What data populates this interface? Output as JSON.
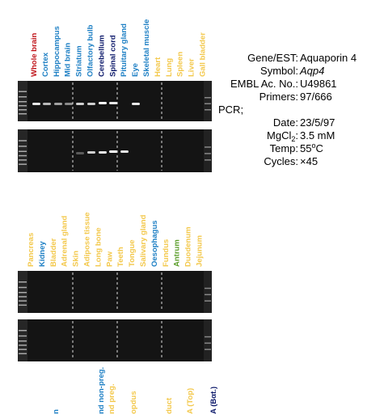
{
  "panel_1": {
    "lanes": [
      {
        "label": "Whole brain",
        "color": "#c0151b"
      },
      {
        "label": "Cortex",
        "color": "#1d7fc4"
      },
      {
        "label": "Hippocampus",
        "color": "#1d7fc4"
      },
      {
        "label": "Mid brain",
        "color": "#1d7fc4"
      },
      {
        "label": "Striatum",
        "color": "#1d7fc4"
      },
      {
        "label": "Olfactory bulb",
        "color": "#1d7fc4"
      },
      {
        "label": "Cerebellum",
        "color": "#0d1a6b"
      },
      {
        "label": "Spinal cord",
        "color": "#0d1a6b"
      },
      {
        "label": "Pituitary gland",
        "color": "#1d7fc4"
      },
      {
        "label": "Eye",
        "color": "#1d7fc4"
      },
      {
        "label": "Skeletal muscle",
        "color": "#1d7fc4"
      },
      {
        "label": "Heart",
        "color": "#f3c84b"
      },
      {
        "label": "Lung",
        "color": "#f3c84b"
      },
      {
        "label": "Spleen",
        "color": "#f3c84b"
      },
      {
        "label": "Liver",
        "color": "#f3c84b"
      },
      {
        "label": "Gall bladder",
        "color": "#f3c84b"
      }
    ]
  },
  "panel_2": {
    "lanes": [
      {
        "label": "Pancreas",
        "color": "#f3c84b"
      },
      {
        "label": "Kidney",
        "color": "#1d7fc4"
      },
      {
        "label": "Bladder",
        "color": "#f3c84b"
      },
      {
        "label": "Adrenal gland",
        "color": "#f3c84b"
      },
      {
        "label": "Skin",
        "color": "#f3c84b"
      },
      {
        "label": "Adipose tissue",
        "color": "#f3c84b"
      },
      {
        "label": "Long bone",
        "color": "#f3c84b"
      },
      {
        "label": "Paw",
        "color": "#f3c84b"
      },
      {
        "label": "Teeth",
        "color": "#f3c84b"
      },
      {
        "label": "Tongue",
        "color": "#f3c84b"
      },
      {
        "label": "Salivary gland",
        "color": "#f3c84b"
      },
      {
        "label": "Oesophagus",
        "color": "#1d7fc4"
      },
      {
        "label": "Fundus",
        "color": "#f3c84b"
      },
      {
        "label": "Antrum",
        "color": "#5b9e2a"
      },
      {
        "label": "Duodenum",
        "color": "#f3c84b"
      },
      {
        "label": "Jejunum",
        "color": "#f3c84b"
      }
    ]
  },
  "panel_3": {
    "lanes": [
      {
        "label": "n",
        "color": "#1d7fc4"
      },
      {
        "label": "nd non-preg.",
        "color": "#1d7fc4"
      },
      {
        "label": "nd preg.",
        "color": "#f3c84b"
      },
      {
        "label": "opdus",
        "color": "#f3c84b"
      },
      {
        "label": "duct",
        "color": "#f3c84b"
      },
      {
        "label": "A (Top)",
        "color": "#f3c84b"
      },
      {
        "label": "A (Bαt.)",
        "color": "#0d1a6b"
      }
    ]
  },
  "info": {
    "gene": {
      "label": "Gene/EST:",
      "value": "Aquaporin 4"
    },
    "symbol": {
      "label": "Symbol:",
      "value": "Aqp4"
    },
    "embl": {
      "label": "EMBL Ac. No.:",
      "value": "U49861"
    },
    "primers": {
      "label": "Primers:",
      "value": "97/666"
    },
    "pcr": "PCR;",
    "date": {
      "label": "Date:",
      "value": "23/5/97"
    },
    "mgcl": {
      "label": "MgCl",
      "sub": "2",
      "colon": ":",
      "value": "3.5 mM"
    },
    "temp": {
      "label": "Temp:",
      "value": "55",
      "sup": "o",
      "unit": "C"
    },
    "cycles": {
      "label": "Cycles:",
      "value": "×45"
    }
  }
}
